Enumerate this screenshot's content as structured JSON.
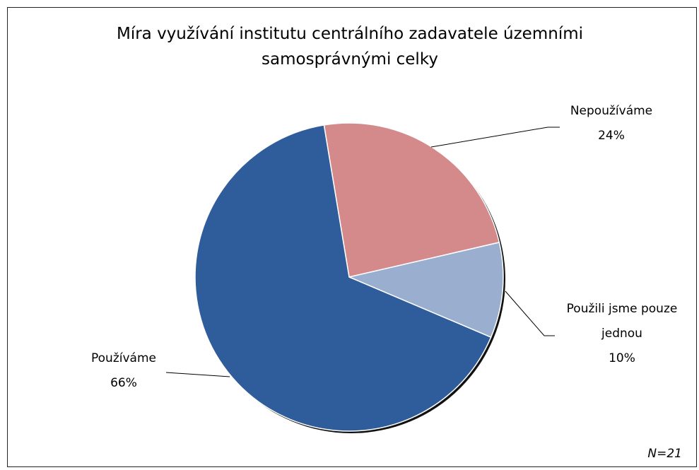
{
  "chart_data": {
    "type": "pie",
    "title": "Míra využívání institutu centrálního zadavatele územními samosprávnými celky",
    "categories": [
      "Nepoužíváme",
      "Použili jsme pouze jednou",
      "Používáme"
    ],
    "values": [
      24,
      10,
      66
    ],
    "value_labels": [
      "24%",
      "10%",
      "66%"
    ],
    "colors": [
      "#d48a8a",
      "#9aaed0",
      "#2f5c9a"
    ],
    "annotation": "N=21"
  }
}
